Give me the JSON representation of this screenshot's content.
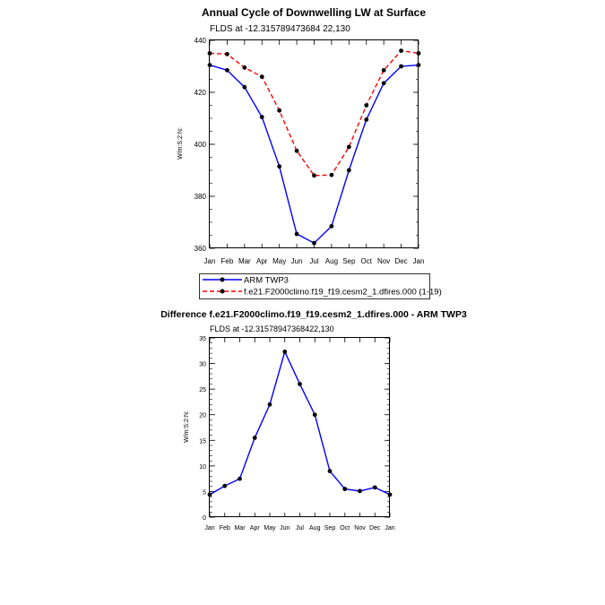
{
  "chart_data": [
    {
      "type": "line",
      "title": "Annual Cycle of Downwelling LW at Surface",
      "subtitle": "FLDS at -12.315789473684 22,130",
      "ylabel": "W/m:S:2:N:",
      "categories": [
        "Jan",
        "Feb",
        "Mar",
        "Apr",
        "May",
        "Jun",
        "Jul",
        "Aug",
        "Sep",
        "Oct",
        "Nov",
        "Dec",
        "Jan"
      ],
      "ylim": [
        360,
        440
      ],
      "yticks": [
        360,
        380,
        400,
        420,
        440
      ],
      "series": [
        {
          "name": "ARM TWP3",
          "color": "#0000ff",
          "dash": "solid",
          "values": [
            430.5,
            428.5,
            422,
            410.5,
            391.5,
            365.5,
            362,
            368.5,
            390,
            409.5,
            423.5,
            430,
            430.5
          ]
        },
        {
          "name": "f.e21.F2000climo.f19_f19.cesm2_1.dfires.000 (1-19)",
          "color": "#ff0000",
          "dash": "dashed",
          "values": [
            435,
            434.7,
            429.5,
            426,
            413,
            397.5,
            388,
            388.2,
            399,
            415,
            428.5,
            436,
            435
          ]
        }
      ],
      "legend_position": "bottom"
    },
    {
      "type": "line",
      "title": "Difference f.e21.F2000climo.f19_f19.cesm2_1.dfires.000 - ARM TWP3",
      "subtitle": "FLDS at -12.31578947368422,130",
      "ylabel": "W/m:S:2:N:",
      "categories": [
        "Jan",
        "Feb",
        "Mar",
        "Apr",
        "May",
        "Jun",
        "Jul",
        "Aug",
        "Sep",
        "Oct",
        "Nov",
        "Dec",
        "Jan"
      ],
      "ylim": [
        0,
        35
      ],
      "yticks": [
        0,
        5,
        10,
        15,
        20,
        25,
        30,
        35
      ],
      "series": [
        {
          "color": "#0000ff",
          "dash": "solid",
          "values": [
            4.4,
            6.1,
            7.5,
            15.5,
            22,
            32.3,
            26,
            20,
            9,
            5.5,
            5.1,
            5.8,
            4.4
          ]
        }
      ]
    }
  ]
}
